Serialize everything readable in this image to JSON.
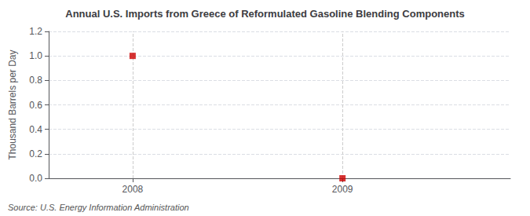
{
  "chart_data": {
    "type": "scatter",
    "title": "Annual U.S. Imports from Greece of Reformulated Gasoline Blending Components",
    "ylabel": "Thousand Barrels per Day",
    "source": "Source: U.S. Energy Information Administration",
    "x": [
      2008,
      2009
    ],
    "values": [
      1.0,
      0.0
    ],
    "color": "#cc0000",
    "marker": "square",
    "xlim": [
      2007.6,
      2009.8
    ],
    "xticks": [
      2008,
      2009
    ],
    "ylim": [
      0.0,
      1.2
    ],
    "yticks": [
      {
        "value": 0.0,
        "label": "0.0"
      },
      0.2,
      0.4,
      0.6,
      0.8,
      {
        "value": 1.0,
        "label": "1.0"
      },
      1.2
    ],
    "grid": true
  }
}
